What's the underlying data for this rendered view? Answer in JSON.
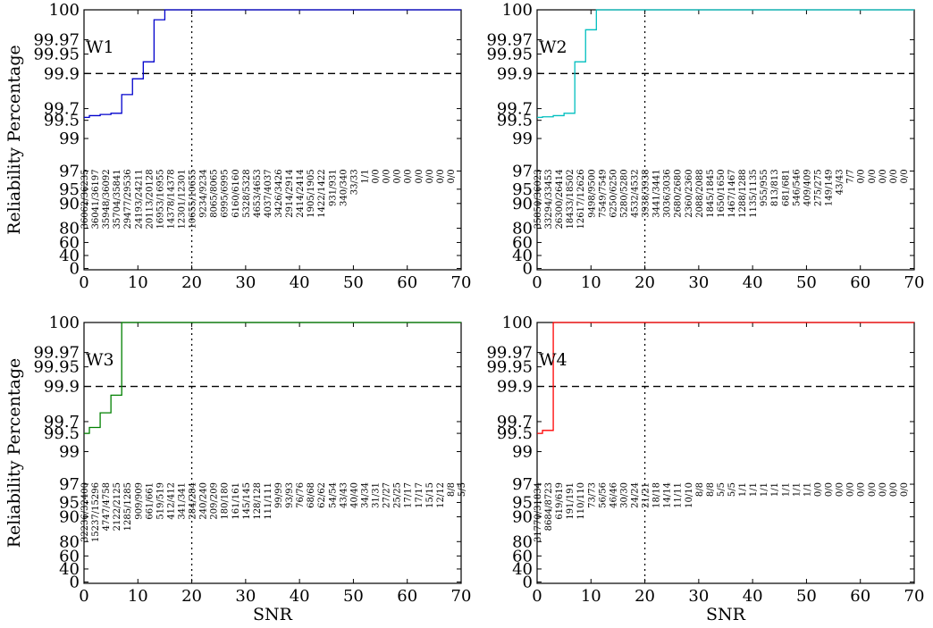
{
  "chart_data": [
    {
      "type": "line",
      "title": "W1",
      "color": "#0000cc",
      "xlabel": "",
      "ylabel": "Reliability Percentage",
      "xlim": [
        0,
        70
      ],
      "xticks": [
        "0",
        "10",
        "20",
        "30",
        "40",
        "50",
        "60",
        "70"
      ],
      "yticks": [
        "0",
        "40",
        "60",
        "80",
        "90",
        "95",
        "97",
        "99",
        "99.5",
        "99.7",
        "99.9",
        "99.95",
        "99.97",
        "100"
      ],
      "threshold_y": 99.9,
      "vline_x": 20,
      "step_x": [
        0,
        1,
        3,
        5,
        7,
        9,
        11,
        13,
        15,
        70
      ],
      "step_y": [
        99.55,
        99.58,
        99.6,
        99.62,
        99.78,
        99.87,
        99.93,
        99.99,
        100,
        100
      ],
      "annotations": [
        "36062/36235",
        "36041/36197",
        "35948/36092",
        "35704/35841",
        "29477/29536",
        "24193/24211",
        "20113/20128",
        "16953/16955",
        "14378/14378",
        "12301/12301",
        "10655/10655",
        "9234/9234",
        "8065/8065",
        "6995/6995",
        "6160/6160",
        "5328/5328",
        "4653/4653",
        "4037/4037",
        "3426/3426",
        "2914/2914",
        "2414/2414",
        "1905/1905",
        "1422/1422",
        "931/931",
        "340/340",
        "33/33",
        "1/1",
        "0/0",
        "0/0",
        "0/0",
        "0/0",
        "0/0",
        "0/0",
        "0/0",
        "0/0"
      ]
    },
    {
      "type": "line",
      "title": "W2",
      "color": "#00bfbf",
      "xlabel": "",
      "ylabel": "",
      "xlim": [
        0,
        70
      ],
      "xticks": [
        "0",
        "10",
        "20",
        "30",
        "40",
        "50",
        "60",
        "70"
      ],
      "yticks": [
        "0",
        "40",
        "60",
        "80",
        "90",
        "95",
        "97",
        "99",
        "99.5",
        "99.7",
        "99.9",
        "99.95",
        "99.97",
        "100"
      ],
      "threshold_y": 99.9,
      "vline_x": 20,
      "step_x": [
        0,
        1,
        3,
        5,
        7,
        9,
        11,
        70
      ],
      "step_y": [
        99.55,
        99.56,
        99.58,
        99.62,
        99.93,
        99.98,
        100,
        100
      ],
      "annotations": [
        "35850/36023",
        "33294/33453",
        "26300/26414",
        "18433/18502",
        "12617/12626",
        "9498/9500",
        "7549/7549",
        "6250/6250",
        "5280/5280",
        "4532/4532",
        "3938/3938",
        "3441/3441",
        "3036/3036",
        "2680/2680",
        "2360/2360",
        "2088/2088",
        "1845/1845",
        "1650/1650",
        "1467/1467",
        "1288/1288",
        "1135/1135",
        "955/955",
        "813/813",
        "681/681",
        "546/546",
        "409/409",
        "275/275",
        "149/149",
        "43/43",
        "7/7",
        "0/0",
        "0/0",
        "0/0",
        "0/0",
        "0/0"
      ]
    },
    {
      "type": "line",
      "title": "W3",
      "color": "#008000",
      "xlabel": "SNR",
      "ylabel": "Reliability Percentage",
      "xlim": [
        0,
        70
      ],
      "xticks": [
        "0",
        "10",
        "20",
        "30",
        "40",
        "50",
        "60",
        "70"
      ],
      "yticks": [
        "0",
        "40",
        "60",
        "80",
        "90",
        "95",
        "97",
        "99",
        "99.5",
        "99.7",
        "99.9",
        "99.95",
        "99.97",
        "100"
      ],
      "threshold_y": 99.9,
      "vline_x": 20,
      "step_x": [
        0,
        1,
        3,
        5,
        7,
        70
      ],
      "step_y": [
        99.5,
        99.6,
        99.75,
        99.85,
        100,
        100
      ],
      "annotations": [
        "32236/32400",
        "15237/15296",
        "4747/4758",
        "2122/2125",
        "1285/1285",
        "909/909",
        "661/661",
        "519/519",
        "412/412",
        "341/341",
        "284/284",
        "240/240",
        "209/209",
        "180/180",
        "161/161",
        "145/145",
        "128/128",
        "111/111",
        "99/99",
        "93/93",
        "76/76",
        "68/68",
        "62/62",
        "54/54",
        "43/43",
        "40/40",
        "34/34",
        "31/31",
        "27/27",
        "25/25",
        "17/17",
        "17/17",
        "15/15",
        "12/12",
        "8/8",
        "5/5"
      ]
    },
    {
      "type": "line",
      "title": "W4",
      "color": "#ff0000",
      "xlabel": "SNR",
      "ylabel": "",
      "xlim": [
        0,
        70
      ],
      "xticks": [
        "0",
        "10",
        "20",
        "30",
        "40",
        "50",
        "60",
        "70"
      ],
      "yticks": [
        "0",
        "40",
        "60",
        "80",
        "90",
        "95",
        "97",
        "99",
        "99.5",
        "99.7",
        "99.9",
        "99.95",
        "99.97",
        "100"
      ],
      "threshold_y": 99.9,
      "vline_x": 20,
      "step_x": [
        0,
        1,
        3,
        70
      ],
      "step_y": [
        99.5,
        99.55,
        100,
        100
      ],
      "annotations": [
        "31770/31834",
        "8684/8723",
        "619/619",
        "191/191",
        "110/110",
        "73/73",
        "56/56",
        "46/46",
        "30/30",
        "24/24",
        "21/21",
        "18/18",
        "14/14",
        "11/11",
        "10/10",
        "8/8",
        "8/8",
        "5/5",
        "5/5",
        "1/1",
        "1/1",
        "1/1",
        "1/1",
        "1/1",
        "1/1",
        "1/1",
        "0/0",
        "0/0",
        "0/0",
        "0/0",
        "0/0",
        "0/0",
        "0/0",
        "0/0",
        "0/0"
      ]
    }
  ]
}
